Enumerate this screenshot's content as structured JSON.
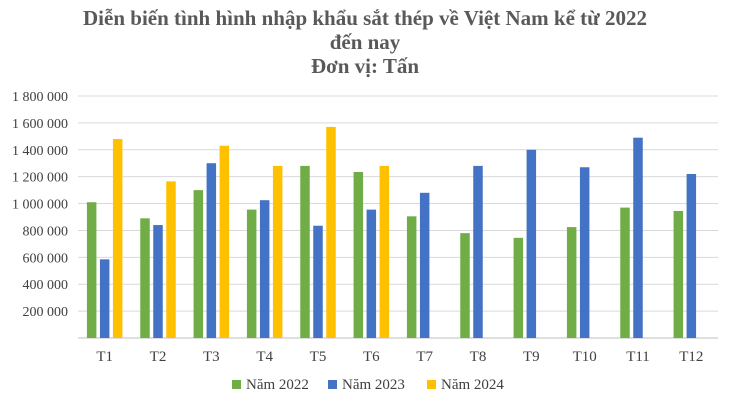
{
  "title_lines": [
    "Diễn biến tình hình nhập khẩu sắt thép về Việt Nam kể từ 2022",
    "đến nay",
    "Đơn vị: Tấn"
  ],
  "chart_data": {
    "type": "bar",
    "title": "Diễn biến tình hình nhập khẩu sắt thép về Việt Nam kể từ 2022 đến nay",
    "subtitle": "Đơn vị: Tấn",
    "categories": [
      "T1",
      "T2",
      "T3",
      "T4",
      "T5",
      "T6",
      "T7",
      "T8",
      "T9",
      "T10",
      "T11",
      "T12"
    ],
    "series": [
      {
        "name": "Năm 2022",
        "color": "#70AD47",
        "values": [
          1010000,
          890000,
          1100000,
          955000,
          1280000,
          1235000,
          905000,
          780000,
          745000,
          825000,
          970000,
          945000
        ]
      },
      {
        "name": "Năm 2023",
        "color": "#4472C4",
        "values": [
          585000,
          840000,
          1300000,
          1025000,
          835000,
          955000,
          1080000,
          1280000,
          1400000,
          1270000,
          1490000,
          1220000
        ]
      },
      {
        "name": "Năm 2024",
        "color": "#FFC000",
        "values": [
          1480000,
          1165000,
          1430000,
          1280000,
          1570000,
          1280000,
          null,
          null,
          null,
          null,
          null,
          null
        ]
      }
    ],
    "y_ticks": [
      "",
      "200 000",
      "400 000",
      "600 000",
      "800 000",
      "1 000 000",
      "1 200 000",
      "1 400 000",
      "1 600 000",
      "1 800 000"
    ],
    "ylim": [
      0,
      1800000
    ],
    "grid": true,
    "legend_position": "bottom"
  }
}
